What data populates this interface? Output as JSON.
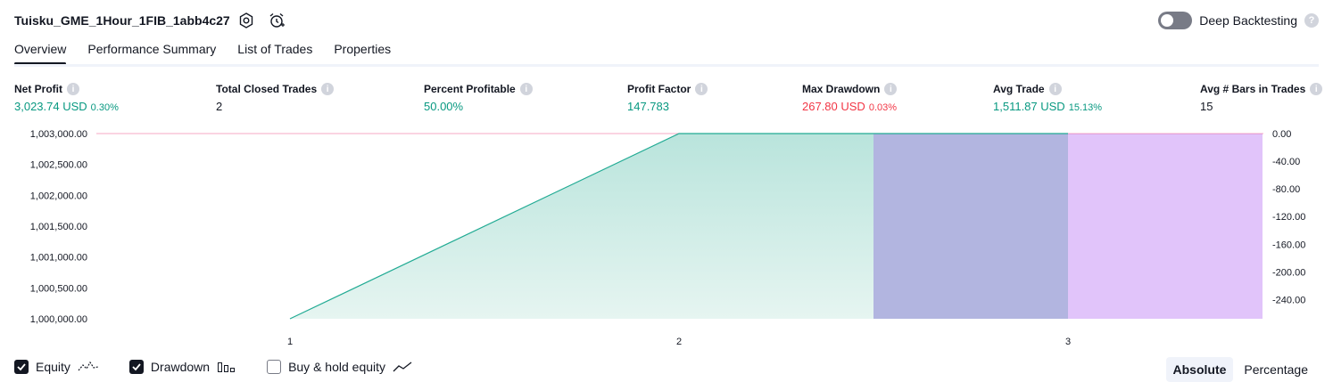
{
  "header": {
    "title": "Tuisku_GME_1Hour_1FIB_1abb4c27",
    "deep_backtesting_label": "Deep Backtesting",
    "help_glyph": "?"
  },
  "tabs": [
    {
      "label": "Overview",
      "active": true
    },
    {
      "label": "Performance Summary",
      "active": false
    },
    {
      "label": "List of Trades",
      "active": false
    },
    {
      "label": "Properties",
      "active": false
    }
  ],
  "metrics": {
    "net_profit": {
      "label": "Net Profit",
      "value": "3,023.74 USD",
      "pct": "0.30%"
    },
    "total_closed_trades": {
      "label": "Total Closed Trades",
      "value": "2"
    },
    "percent_profitable": {
      "label": "Percent Profitable",
      "value": "50.00%"
    },
    "profit_factor": {
      "label": "Profit Factor",
      "value": "147.783"
    },
    "max_drawdown": {
      "label": "Max Drawdown",
      "value": "267.80 USD",
      "pct": "0.03%"
    },
    "avg_trade": {
      "label": "Avg Trade",
      "value": "1,511.87 USD",
      "pct": "15.13%"
    },
    "avg_bars": {
      "label": "Avg # Bars in Trades",
      "value": "15"
    }
  },
  "info_glyph": "i",
  "chart_data": {
    "type": "area",
    "x_ticks": [
      "1",
      "2",
      "3"
    ],
    "equity": {
      "x": [
        1,
        2,
        3
      ],
      "y": [
        1000000.0,
        1003024.0,
        1003024.0
      ]
    },
    "y_left_ticks": [
      "1,003,000.00",
      "1,002,500.00",
      "1,002,000.00",
      "1,001,500.00",
      "1,001,000.00",
      "1,000,500.00",
      "1,000,000.00"
    ],
    "y_left_range": [
      1000000,
      1003000
    ],
    "y_right_ticks": [
      "0.00",
      "-40.00",
      "-80.00",
      "-120.00",
      "-160.00",
      "-200.00",
      "-240.00"
    ],
    "y_right_range": [
      -267.8,
      0
    ],
    "drawdown_bars": [
      {
        "x_start": 2.5,
        "x_end": 3.0,
        "color": "#b2b5e0"
      },
      {
        "x_start": 3.0,
        "x_end": 3.5,
        "color": "#e1c4fa"
      }
    ],
    "colors": {
      "equity_line": "#22ab94",
      "equity_fill_top": "#b9e4dc",
      "equity_fill_bottom": "#e6f5f1",
      "zero_line": "#e91e63"
    }
  },
  "legend": {
    "equity": {
      "label": "Equity",
      "checked": true
    },
    "drawdown": {
      "label": "Drawdown",
      "checked": true
    },
    "buy_hold": {
      "label": "Buy & hold equity",
      "checked": false
    }
  },
  "mode": {
    "absolute_label": "Absolute",
    "percentage_label": "Percentage",
    "selected": "Absolute"
  }
}
